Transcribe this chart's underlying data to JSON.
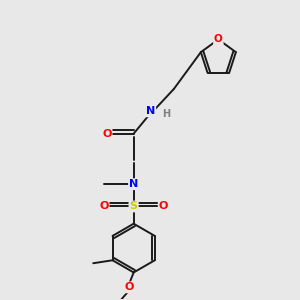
{
  "bg_color": "#e8e8e8",
  "bond_color": "#1a1a1a",
  "colors": {
    "O": "#ff0000",
    "N": "#0000ff",
    "S": "#cccc00",
    "C": "#1a1a1a",
    "H": "#808080"
  }
}
